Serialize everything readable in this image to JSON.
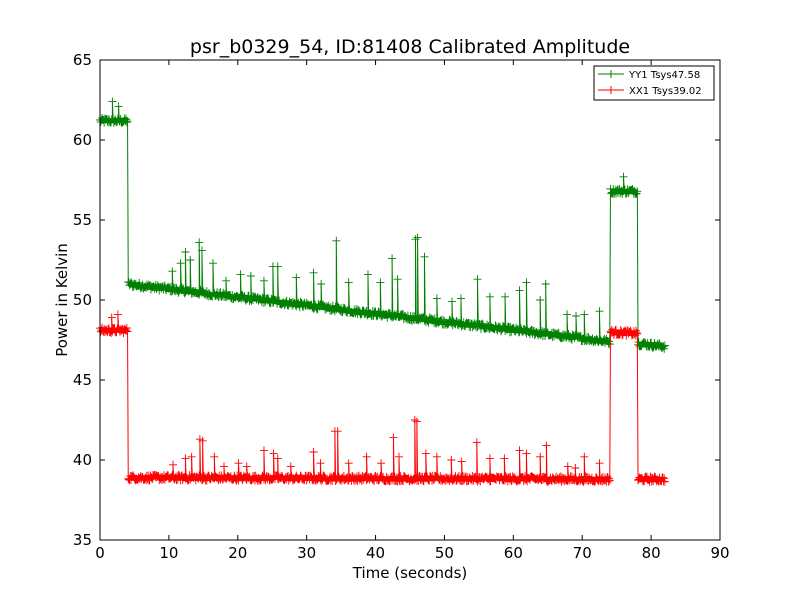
{
  "chart_data": {
    "type": "line",
    "title": "psr_b0329_54, ID:81408 Calibrated Amplitude",
    "xlabel": "Time (seconds)",
    "ylabel": "Power in Kelvin",
    "xlim": [
      0,
      90
    ],
    "ylim": [
      35,
      65
    ],
    "xticks": [
      0,
      10,
      20,
      30,
      40,
      50,
      60,
      70,
      80,
      90
    ],
    "yticks": [
      35,
      40,
      45,
      50,
      55,
      60,
      65
    ],
    "grid": false,
    "legend_position": "top-right",
    "marker": "+",
    "series": [
      {
        "name": "YY1 Tsys47.58",
        "color": "#008000",
        "x": [
          0,
          4,
          4.05,
          74,
          74.05,
          78,
          78.05,
          82
        ],
        "y": [
          61.2,
          61.2,
          51.0,
          47.4,
          56.8,
          56.8,
          47.3,
          47.1
        ],
        "spikes_x": [
          1.8,
          2.7,
          10.5,
          11.7,
          12.4,
          13.1,
          14.4,
          14.8,
          16.4,
          18.3,
          20.4,
          21.9,
          23.8,
          25.1,
          25.8,
          28.5,
          31.0,
          32.1,
          34.3,
          36.1,
          38.9,
          40.7,
          42.4,
          43.2,
          45.8,
          46.1,
          47.1,
          48.9,
          51.1,
          52.4,
          54.8,
          56.6,
          58.8,
          60.9,
          61.9,
          63.9,
          64.7,
          67.8,
          69.1,
          70.3,
          72.5,
          76.0
        ],
        "spikes_y": [
          62.4,
          62.1,
          51.8,
          52.3,
          53.0,
          52.5,
          53.6,
          53.1,
          52.3,
          51.2,
          51.6,
          51.5,
          51.2,
          52.1,
          52.1,
          51.4,
          51.7,
          51.0,
          53.7,
          51.1,
          51.6,
          51.1,
          52.6,
          51.3,
          53.8,
          53.9,
          52.7,
          50.1,
          49.9,
          50.1,
          51.3,
          50.2,
          50.2,
          50.6,
          51.1,
          50.0,
          51.0,
          49.1,
          49.0,
          49.1,
          49.3,
          57.7
        ]
      },
      {
        "name": "XX1 Tsys39.02",
        "color": "#ff0000",
        "x": [
          0,
          4,
          4.05,
          74,
          74.05,
          78,
          78.05,
          82
        ],
        "y": [
          48.1,
          48.1,
          38.9,
          38.8,
          48.0,
          47.9,
          38.8,
          38.8
        ],
        "spikes_x": [
          1.7,
          2.6,
          10.6,
          12.4,
          13.3,
          14.5,
          14.9,
          16.6,
          18.0,
          20.1,
          21.3,
          23.8,
          25.2,
          25.8,
          27.7,
          31.0,
          32.0,
          34.1,
          34.5,
          36.1,
          38.7,
          40.8,
          42.6,
          43.4,
          45.7,
          46.0,
          47.3,
          48.9,
          51.0,
          52.5,
          54.7,
          56.6,
          58.7,
          60.9,
          61.9,
          63.9,
          64.8,
          67.9,
          69.0,
          70.3,
          72.5
        ],
        "spikes_y": [
          48.9,
          49.1,
          39.7,
          40.1,
          40.2,
          41.3,
          41.2,
          40.2,
          39.6,
          39.8,
          39.6,
          40.6,
          40.4,
          40.1,
          39.6,
          40.5,
          39.8,
          41.8,
          41.8,
          39.8,
          40.2,
          39.8,
          41.4,
          40.2,
          42.5,
          42.4,
          40.4,
          40.2,
          40.0,
          39.9,
          41.1,
          40.1,
          40.1,
          40.6,
          40.4,
          40.2,
          40.9,
          39.6,
          39.5,
          40.2,
          39.8
        ]
      }
    ]
  }
}
